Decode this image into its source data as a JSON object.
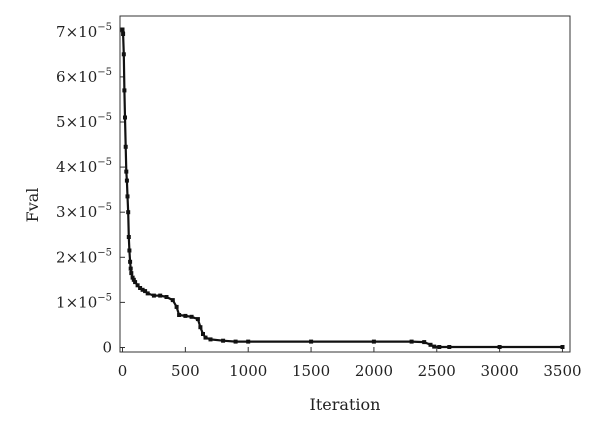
{
  "chart_data": {
    "type": "line",
    "title": "",
    "xlabel": "Iteration",
    "ylabel": "Fval",
    "xlim": [
      -20,
      3560
    ],
    "ylim": [
      -0.1,
      7.35
    ],
    "y_exponent_label": "×10",
    "y_exponent": "−5",
    "x_ticks": [
      0,
      500,
      1000,
      1500,
      2000,
      2500,
      3000,
      3500
    ],
    "x_tick_labels": [
      "0",
      "500",
      "1000",
      "1500",
      "2000",
      "2500",
      "3000",
      "3500"
    ],
    "y_ticks": [
      0,
      1,
      2,
      3,
      4,
      5,
      6,
      7
    ],
    "y_tick_labels": [
      "0",
      "1×10",
      "2×10",
      "3×10",
      "4×10",
      "5×10",
      "6×10",
      "7×10"
    ],
    "grid": false,
    "legend": "none",
    "series": [
      {
        "color": "#111111",
        "marker": "square",
        "x": [
          0,
          5,
          10,
          15,
          20,
          25,
          30,
          35,
          40,
          45,
          50,
          55,
          60,
          65,
          70,
          80,
          90,
          100,
          120,
          140,
          160,
          180,
          200,
          250,
          300,
          350,
          400,
          430,
          450,
          500,
          550,
          600,
          620,
          640,
          660,
          700,
          800,
          900,
          1000,
          1500,
          2000,
          2300,
          2400,
          2450,
          2480,
          2520,
          2600,
          3000,
          3500
        ],
        "y": [
          7.05,
          6.95,
          6.5,
          5.7,
          5.1,
          4.45,
          3.9,
          3.7,
          3.35,
          3.0,
          2.45,
          2.15,
          1.9,
          1.75,
          1.65,
          1.55,
          1.5,
          1.45,
          1.38,
          1.32,
          1.28,
          1.25,
          1.2,
          1.15,
          1.15,
          1.12,
          1.05,
          0.9,
          0.72,
          0.7,
          0.68,
          0.63,
          0.45,
          0.3,
          0.22,
          0.18,
          0.15,
          0.13,
          0.13,
          0.13,
          0.13,
          0.13,
          0.12,
          0.06,
          0.02,
          0.01,
          0.01,
          0.01,
          0.01
        ]
      }
    ]
  }
}
